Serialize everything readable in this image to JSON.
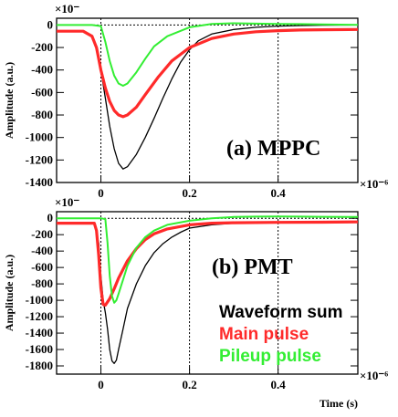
{
  "charts": [
    {
      "id": "mppc",
      "type": "line",
      "annotation": "(a) MPPC",
      "ylabel": "Amplitude (a.u.)",
      "xlabel": "",
      "x_multiplier": "×10⁻⁶",
      "y_multiplier": "×10⁻",
      "xlim": [
        -0.1,
        0.58
      ],
      "ylim": [
        -1400,
        60
      ],
      "xticks": [
        0,
        0.2,
        0.4
      ],
      "yticks": [
        0,
        -200,
        -400,
        -600,
        -800,
        -1000,
        -1200,
        -1400
      ],
      "series": [
        {
          "color": "#000000",
          "width": 1.3,
          "x": [
            -0.1,
            -0.04,
            -0.02,
            -0.01,
            0.0,
            0.01,
            0.02,
            0.03,
            0.04,
            0.05,
            0.06,
            0.08,
            0.1,
            0.12,
            0.14,
            0.16,
            0.18,
            0.2,
            0.22,
            0.25,
            0.3,
            0.35,
            0.4,
            0.45,
            0.5,
            0.58
          ],
          "y": [
            -60,
            -60,
            -100,
            -200,
            -400,
            -650,
            -900,
            -1100,
            -1230,
            -1280,
            -1260,
            -1150,
            -1000,
            -830,
            -650,
            -480,
            -330,
            -220,
            -140,
            -80,
            -40,
            -20,
            -10,
            -5,
            -2,
            0
          ]
        },
        {
          "color": "#ff2a2a",
          "width": 3.2,
          "x": [
            -0.1,
            -0.04,
            -0.02,
            -0.01,
            0.0,
            0.01,
            0.02,
            0.03,
            0.04,
            0.05,
            0.06,
            0.08,
            0.1,
            0.13,
            0.16,
            0.2,
            0.25,
            0.3,
            0.35,
            0.4,
            0.45,
            0.5,
            0.58
          ],
          "y": [
            -55,
            -55,
            -100,
            -200,
            -400,
            -560,
            -680,
            -760,
            -800,
            -815,
            -800,
            -730,
            -620,
            -460,
            -320,
            -200,
            -120,
            -80,
            -60,
            -50,
            -45,
            -42,
            -40
          ]
        },
        {
          "color": "#33ee33",
          "width": 2.0,
          "x": [
            -0.1,
            -0.02,
            0.0,
            0.01,
            0.02,
            0.03,
            0.04,
            0.05,
            0.06,
            0.08,
            0.1,
            0.12,
            0.15,
            0.2,
            0.25,
            0.3,
            0.35,
            0.4,
            0.45,
            0.5,
            0.58
          ],
          "y": [
            0,
            0,
            -10,
            -150,
            -320,
            -450,
            -520,
            -540,
            -520,
            -420,
            -300,
            -190,
            -100,
            -20,
            10,
            15,
            12,
            10,
            8,
            5,
            2
          ]
        }
      ]
    },
    {
      "id": "pmt",
      "type": "line",
      "annotation": "(b) PMT",
      "ylabel": "Amplitude (a.u.)",
      "xlabel": "Time (s)",
      "x_multiplier": "×10⁻⁶",
      "y_multiplier": "×10⁻",
      "xlim": [
        -0.1,
        0.58
      ],
      "ylim": [
        -1900,
        80
      ],
      "xticks": [
        0,
        0.2,
        0.4
      ],
      "yticks": [
        0,
        -200,
        -400,
        -600,
        -800,
        -1000,
        -1200,
        -1400,
        -1600,
        -1800
      ],
      "legend": [
        {
          "label": "Waveform sum",
          "color": "#000000"
        },
        {
          "label": "Main pulse",
          "color": "#ff2a2a"
        },
        {
          "label": "Pileup pulse",
          "color": "#33ee33"
        }
      ],
      "series": [
        {
          "color": "#000000",
          "width": 1.3,
          "x": [
            -0.1,
            -0.015,
            -0.005,
            0.0,
            0.005,
            0.01,
            0.015,
            0.02,
            0.025,
            0.03,
            0.035,
            0.04,
            0.05,
            0.06,
            0.08,
            0.1,
            0.12,
            0.14,
            0.16,
            0.18,
            0.2,
            0.25,
            0.3,
            0.35,
            0.4,
            0.5,
            0.58
          ],
          "y": [
            -60,
            -60,
            -300,
            -700,
            -1000,
            -1150,
            -1350,
            -1600,
            -1740,
            -1770,
            -1730,
            -1600,
            -1350,
            -1100,
            -800,
            -580,
            -420,
            -310,
            -230,
            -170,
            -120,
            -80,
            -60,
            -50,
            -45,
            -42,
            -40
          ]
        },
        {
          "color": "#ff2a2a",
          "width": 3.2,
          "x": [
            -0.1,
            -0.015,
            -0.01,
            -0.005,
            0.0,
            0.005,
            0.01,
            0.02,
            0.03,
            0.04,
            0.06,
            0.08,
            0.1,
            0.12,
            0.15,
            0.2,
            0.25,
            0.3,
            0.4,
            0.5,
            0.58
          ],
          "y": [
            -60,
            -60,
            -150,
            -450,
            -850,
            -1050,
            -1060,
            -980,
            -860,
            -730,
            -520,
            -370,
            -260,
            -190,
            -130,
            -80,
            -60,
            -55,
            -50,
            -48,
            -45
          ]
        },
        {
          "color": "#33ee33",
          "width": 2.0,
          "x": [
            -0.1,
            0.0,
            0.01,
            0.015,
            0.02,
            0.025,
            0.03,
            0.035,
            0.04,
            0.05,
            0.06,
            0.08,
            0.1,
            0.12,
            0.15,
            0.2,
            0.25,
            0.3,
            0.35,
            0.4,
            0.45,
            0.5,
            0.58
          ],
          "y": [
            0,
            0,
            -10,
            -300,
            -700,
            -950,
            -1030,
            -1000,
            -920,
            -750,
            -580,
            -360,
            -230,
            -150,
            -80,
            -30,
            0,
            15,
            20,
            22,
            20,
            18,
            15
          ]
        }
      ]
    }
  ]
}
